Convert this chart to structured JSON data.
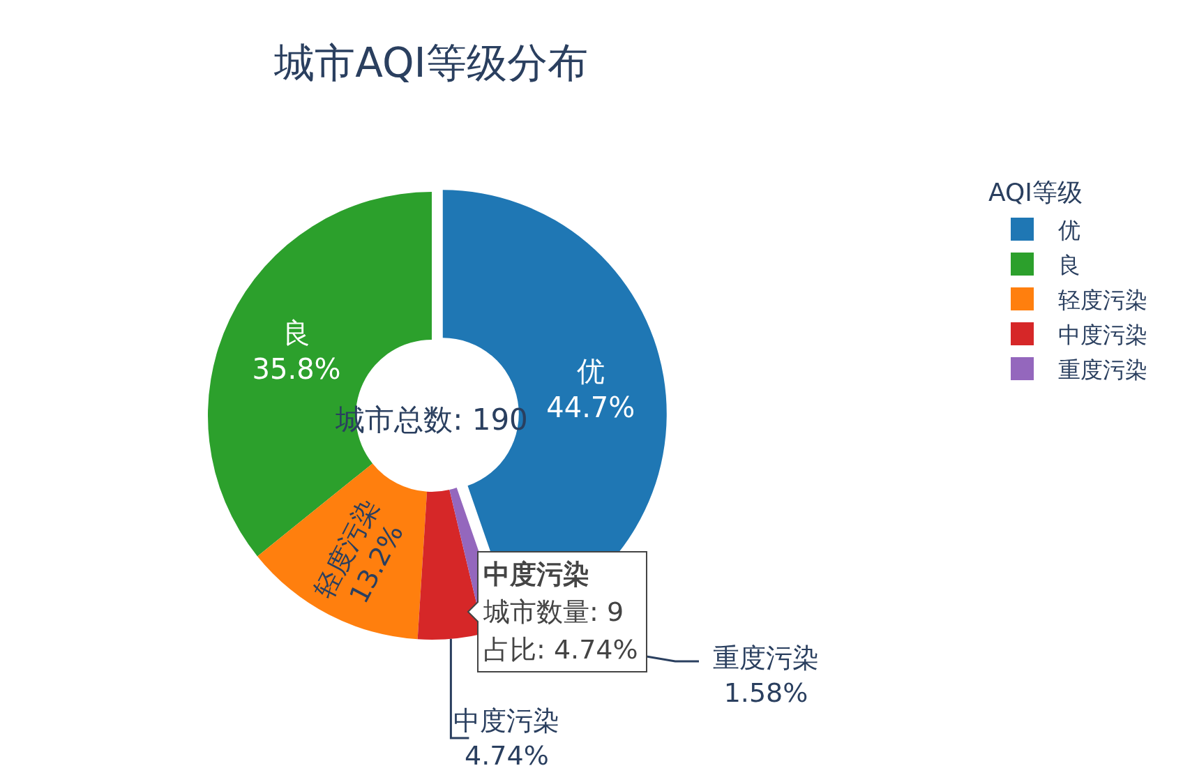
{
  "chart_data": {
    "type": "donut",
    "title": "城市AQI等级分布",
    "legend_title": "AQI等级",
    "legend": "right",
    "categories": [
      "优",
      "良",
      "轻度污染",
      "中度污染",
      "重度污染"
    ],
    "values": [
      44.7,
      35.8,
      13.2,
      4.74,
      1.58
    ],
    "colors": [
      "#1f77b4",
      "#2ca02c",
      "#ff7f0e",
      "#d62728",
      "#9467bd"
    ],
    "value_labels": [
      "44.7%",
      "35.8%",
      "13.2%",
      "4.74%",
      "1.58%"
    ],
    "annotations": [
      "城市总数: 190",
      "中度污染",
      "城市数量: 9",
      "占比: 4.74%"
    ]
  }
}
